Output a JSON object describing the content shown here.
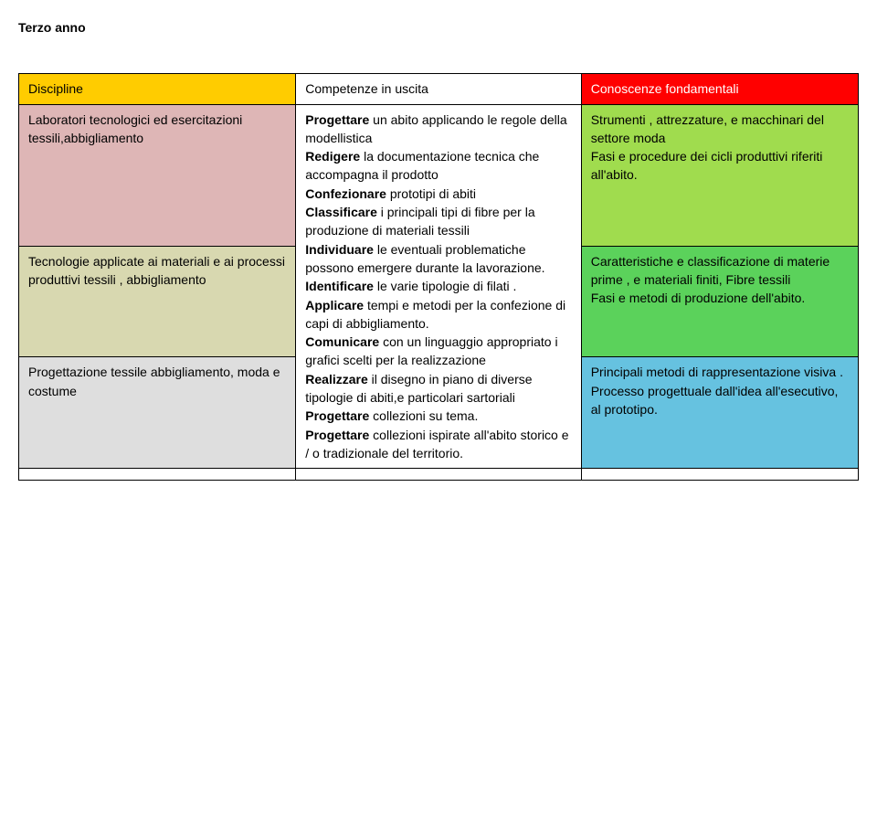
{
  "title": "Terzo anno",
  "header": {
    "discipline": "Discipline",
    "competenze": "Competenze in uscita",
    "conoscenze": "Conoscenze fondamentali"
  },
  "rows": [
    {
      "discipline": "Laboratori tecnologici ed esercitazioni tessili,abbigliamento",
      "competenze": "Progettare un abito applicando le regole della modellistica\nRedigere la documentazione tecnica che accompagna il prodotto\nConfezionare prototipi di abiti",
      "conoscenze": "Strumenti , attrezzature, e macchinari del settore moda\nFasi e procedure dei cicli produttivi riferiti all'abito."
    },
    {
      "discipline": "Tecnologie applicate ai materiali e ai processi produttivi tessili , abbigliamento",
      "competenze": "Classificare i principali tipi di fibre per la produzione di materiali tessili\nIndividuare le eventuali problematiche possono emergere durante la lavorazione.\n Identificare le varie tipologie di filati .\nApplicare tempi e metodi per la confezione di capi di abbigliamento.",
      "conoscenze": "Caratteristiche e classificazione di materie prime , e materiali finiti, Fibre tessili\nFasi e metodi di produzione dell'abito."
    },
    {
      "discipline": "Progettazione tessile abbigliamento, moda e costume",
      "competenze": "Comunicare con un linguaggio appropriato i grafici scelti per la realizzazione\nRealizzare il disegno in piano di diverse tipologie di abiti,e particolari sartoriali\nProgettare collezioni su tema.\nProgettare collezioni ispirate all'abito storico e / o tradizionale del territorio.",
      "conoscenze": "Principali metodi di rappresentazione visiva .\nProcesso progettuale dall'idea all'esecutivo, al prototipo."
    }
  ],
  "bold_keywords": [
    "Progettare",
    "Redigere",
    "Confezionare",
    "Classificare",
    "Individuare",
    "Identificare",
    "Applicare",
    "Comunicare",
    "Realizzare"
  ]
}
